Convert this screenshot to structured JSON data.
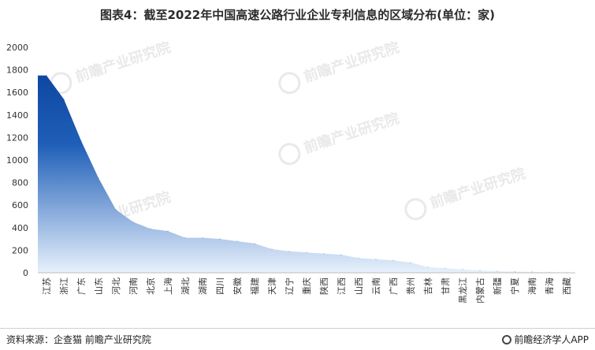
{
  "title": "图表4：截至2022年中国高速公路行业企业专利信息的区域分布(单位：家)",
  "watermark": "前瞻产业研究院",
  "source": "资料来源：企查猫 前瞻产业研究院",
  "brand": "前瞻经济学人APP",
  "brand_icon": "qianzhan-logo-icon",
  "colors": {
    "area_top": "#0d47a1",
    "area_bottom": "#e8f1fc",
    "axis": "#bdbdbd",
    "text": "#333333"
  },
  "chart_data": {
    "type": "area",
    "title": "图表4：截至2022年中国高速公路行业企业专利信息的区域分布(单位：家)",
    "xlabel": "",
    "ylabel": "",
    "ylim": [
      0,
      2000
    ],
    "yticks": [
      0,
      200,
      400,
      600,
      800,
      1000,
      1200,
      1400,
      1600,
      1800,
      2000
    ],
    "grid": false,
    "categories": [
      "江苏",
      "浙江",
      "广东",
      "山东",
      "河北",
      "河南",
      "北京",
      "上海",
      "湖北",
      "湖南",
      "四川",
      "安徽",
      "福建",
      "天津",
      "辽宁",
      "重庆",
      "陕西",
      "江西",
      "山西",
      "云南",
      "广西",
      "贵州",
      "吉林",
      "甘肃",
      "黑龙江",
      "内蒙古",
      "新疆",
      "宁夏",
      "海南",
      "青海",
      "西藏"
    ],
    "values": [
      1750,
      1540,
      1170,
      840,
      560,
      450,
      390,
      370,
      310,
      310,
      300,
      280,
      260,
      210,
      190,
      180,
      170,
      160,
      130,
      120,
      110,
      90,
      50,
      40,
      30,
      20,
      15,
      10,
      8,
      5,
      3
    ]
  }
}
